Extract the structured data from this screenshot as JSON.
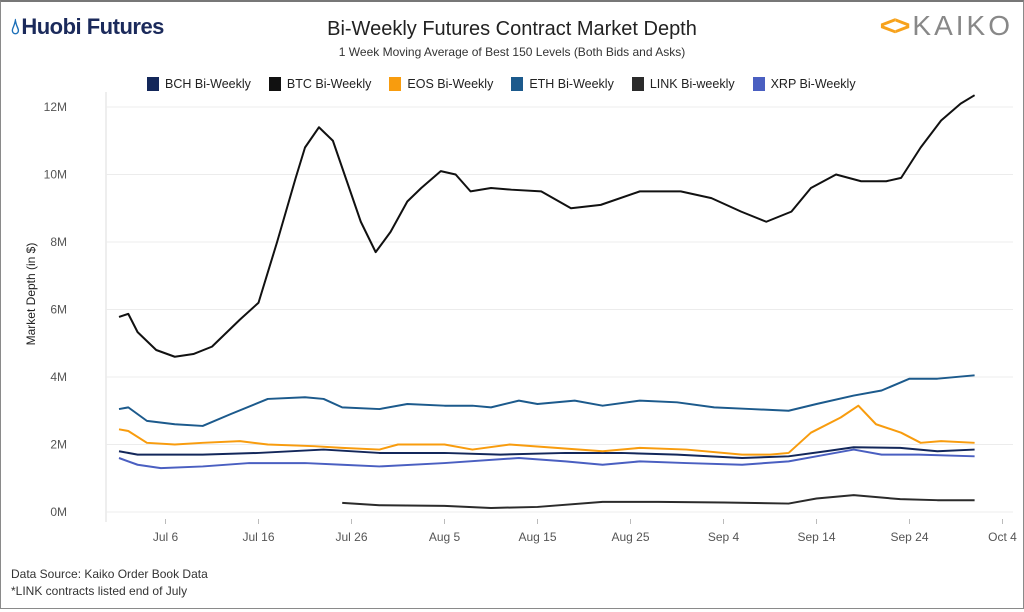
{
  "header": {
    "left_logo": "Huobi Futures",
    "right_logo": "KAIKO",
    "title": "Bi-Weekly Futures Contract Market Depth",
    "subtitle": "1 Week Moving Average of Best 150 Levels (Both Bids and Asks)"
  },
  "footer": {
    "source": "Data Source: Kaiko Order Book Data",
    "note": "*LINK contracts listed end of July"
  },
  "chart_data": {
    "type": "line",
    "title": "Bi-Weekly Futures Contract Market Depth",
    "xlabel": "",
    "ylabel": "Market Depth (in $)",
    "x_unit": "days since Jul 1",
    "xlim": [
      -1,
      97
    ],
    "ylim": [
      0,
      12.5
    ],
    "x_ticks": [
      {
        "day": 5,
        "label": "Jul 6"
      },
      {
        "day": 15,
        "label": "Jul 16"
      },
      {
        "day": 25,
        "label": "Jul 26"
      },
      {
        "day": 35,
        "label": "Aug 5"
      },
      {
        "day": 45,
        "label": "Aug 15"
      },
      {
        "day": 55,
        "label": "Aug 25"
      },
      {
        "day": 65,
        "label": "Sep 4"
      },
      {
        "day": 75,
        "label": "Sep 14"
      },
      {
        "day": 85,
        "label": "Sep 24"
      },
      {
        "day": 95,
        "label": "Oct 4"
      }
    ],
    "y_ticks": [
      {
        "v": 0,
        "label": "0M"
      },
      {
        "v": 2,
        "label": "2M"
      },
      {
        "v": 4,
        "label": "4M"
      },
      {
        "v": 6,
        "label": "6M"
      },
      {
        "v": 8,
        "label": "8M"
      },
      {
        "v": 10,
        "label": "10M"
      },
      {
        "v": 12,
        "label": "12M"
      }
    ],
    "grid": true,
    "legend": "top",
    "series": [
      {
        "name": "BCH Bi-Weekly",
        "color": "#13275a",
        "points": [
          [
            0,
            1.8
          ],
          [
            2,
            1.7
          ],
          [
            9,
            1.7
          ],
          [
            15,
            1.75
          ],
          [
            22,
            1.85
          ],
          [
            28,
            1.75
          ],
          [
            35,
            1.75
          ],
          [
            41,
            1.7
          ],
          [
            48,
            1.75
          ],
          [
            54,
            1.75
          ],
          [
            60,
            1.7
          ],
          [
            67,
            1.6
          ],
          [
            72,
            1.65
          ],
          [
            76,
            1.8
          ],
          [
            79,
            1.92
          ],
          [
            84,
            1.9
          ],
          [
            88,
            1.8
          ],
          [
            92,
            1.85
          ]
        ]
      },
      {
        "name": "BTC Bi-Weekly",
        "color": "#111111",
        "points": [
          [
            0,
            5.78
          ],
          [
            1,
            5.87
          ],
          [
            2,
            5.33
          ],
          [
            4,
            4.8
          ],
          [
            6,
            4.6
          ],
          [
            8,
            4.68
          ],
          [
            10,
            4.9
          ],
          [
            13,
            5.7
          ],
          [
            15,
            6.2
          ],
          [
            17,
            8.0
          ],
          [
            19,
            9.9
          ],
          [
            20,
            10.8
          ],
          [
            21.5,
            11.4
          ],
          [
            23,
            11.0
          ],
          [
            24.5,
            9.8
          ],
          [
            26,
            8.6
          ],
          [
            27.6,
            7.7
          ],
          [
            29.2,
            8.3
          ],
          [
            31,
            9.2
          ],
          [
            32.5,
            9.6
          ],
          [
            34.6,
            10.1
          ],
          [
            36.2,
            10.0
          ],
          [
            37.8,
            9.5
          ],
          [
            40,
            9.6
          ],
          [
            42.2,
            9.55
          ],
          [
            45.4,
            9.5
          ],
          [
            48.6,
            9.0
          ],
          [
            51.8,
            9.1
          ],
          [
            56,
            9.5
          ],
          [
            60.4,
            9.5
          ],
          [
            63.7,
            9.3
          ],
          [
            66.9,
            8.9
          ],
          [
            69.6,
            8.6
          ],
          [
            72.3,
            8.9
          ],
          [
            74.4,
            9.6
          ],
          [
            77.1,
            10.0
          ],
          [
            79.8,
            9.8
          ],
          [
            82.5,
            9.8
          ],
          [
            84.1,
            9.9
          ],
          [
            86.2,
            10.8
          ],
          [
            88.4,
            11.6
          ],
          [
            90.5,
            12.1
          ],
          [
            92,
            12.35
          ]
        ]
      },
      {
        "name": "EOS Bi-Weekly",
        "color": "#f89c0e",
        "points": [
          [
            0,
            2.45
          ],
          [
            1,
            2.4
          ],
          [
            3,
            2.05
          ],
          [
            6,
            2.0
          ],
          [
            9,
            2.05
          ],
          [
            13,
            2.1
          ],
          [
            16,
            2.0
          ],
          [
            21,
            1.95
          ],
          [
            24,
            1.9
          ],
          [
            28,
            1.85
          ],
          [
            30,
            2.0
          ],
          [
            35,
            2.0
          ],
          [
            38,
            1.85
          ],
          [
            42,
            2.0
          ],
          [
            47,
            1.9
          ],
          [
            52,
            1.8
          ],
          [
            56,
            1.9
          ],
          [
            61,
            1.85
          ],
          [
            67,
            1.7
          ],
          [
            70,
            1.7
          ],
          [
            72,
            1.75
          ],
          [
            74.4,
            2.35
          ],
          [
            77.6,
            2.8
          ],
          [
            79.5,
            3.15
          ],
          [
            81.4,
            2.6
          ],
          [
            84.1,
            2.35
          ],
          [
            86.2,
            2.05
          ],
          [
            88.4,
            2.1
          ],
          [
            92,
            2.05
          ]
        ]
      },
      {
        "name": "ETH Bi-Weekly",
        "color": "#1c5a8c",
        "points": [
          [
            0,
            3.05
          ],
          [
            1,
            3.1
          ],
          [
            3,
            2.7
          ],
          [
            6,
            2.6
          ],
          [
            9,
            2.55
          ],
          [
            12,
            2.9
          ],
          [
            16,
            3.35
          ],
          [
            20,
            3.4
          ],
          [
            22,
            3.35
          ],
          [
            24,
            3.1
          ],
          [
            28,
            3.05
          ],
          [
            31,
            3.2
          ],
          [
            35,
            3.15
          ],
          [
            38,
            3.15
          ],
          [
            40,
            3.1
          ],
          [
            43,
            3.3
          ],
          [
            45,
            3.2
          ],
          [
            49,
            3.3
          ],
          [
            52,
            3.15
          ],
          [
            56,
            3.3
          ],
          [
            60,
            3.25
          ],
          [
            64,
            3.1
          ],
          [
            68,
            3.05
          ],
          [
            72,
            3.0
          ],
          [
            75,
            3.2
          ],
          [
            79,
            3.45
          ],
          [
            82,
            3.6
          ],
          [
            85,
            3.95
          ],
          [
            88,
            3.95
          ],
          [
            92,
            4.05
          ]
        ]
      },
      {
        "name": "LINK Bi-weekly",
        "color": "#2b2b2b",
        "points": [
          [
            24,
            0.27
          ],
          [
            28,
            0.2
          ],
          [
            35,
            0.18
          ],
          [
            40,
            0.12
          ],
          [
            45,
            0.15
          ],
          [
            52,
            0.3
          ],
          [
            58,
            0.3
          ],
          [
            65,
            0.28
          ],
          [
            72,
            0.25
          ],
          [
            75,
            0.4
          ],
          [
            79,
            0.5
          ],
          [
            84,
            0.38
          ],
          [
            88,
            0.35
          ],
          [
            92,
            0.35
          ]
        ]
      },
      {
        "name": "XRP Bi-Weekly",
        "color": "#4a5fc1",
        "points": [
          [
            0,
            1.6
          ],
          [
            2,
            1.4
          ],
          [
            4.5,
            1.3
          ],
          [
            9,
            1.35
          ],
          [
            14,
            1.45
          ],
          [
            20,
            1.45
          ],
          [
            24,
            1.4
          ],
          [
            28,
            1.35
          ],
          [
            35,
            1.45
          ],
          [
            43,
            1.6
          ],
          [
            48,
            1.5
          ],
          [
            52,
            1.4
          ],
          [
            56,
            1.5
          ],
          [
            61,
            1.45
          ],
          [
            67,
            1.4
          ],
          [
            72,
            1.5
          ],
          [
            75,
            1.65
          ],
          [
            79,
            1.85
          ],
          [
            82,
            1.7
          ],
          [
            86,
            1.7
          ],
          [
            92,
            1.65
          ]
        ]
      }
    ]
  }
}
